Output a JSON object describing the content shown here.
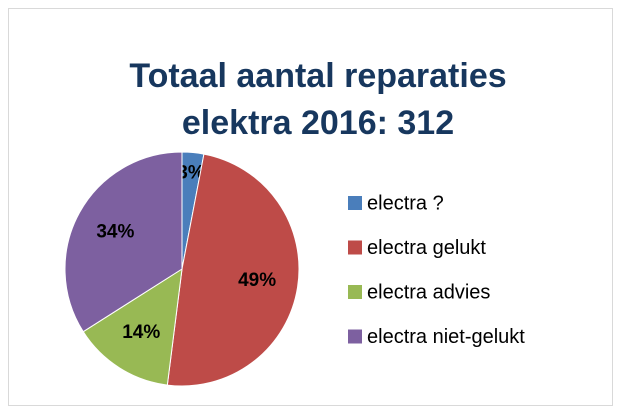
{
  "chart_data": {
    "type": "pie",
    "title": [
      "Totaal aantal reparaties",
      "elektra 2016: 312"
    ],
    "categories": [
      "electra ?",
      "electra gelukt",
      "electra advies",
      "electra niet-gelukt"
    ],
    "values": [
      3,
      49,
      14,
      34
    ],
    "value_labels": [
      "3%",
      "49%",
      "14%",
      "34%"
    ],
    "colors": [
      "#4a7ebb",
      "#be4b48",
      "#98b954",
      "#7d60a0"
    ],
    "legend": "right"
  }
}
